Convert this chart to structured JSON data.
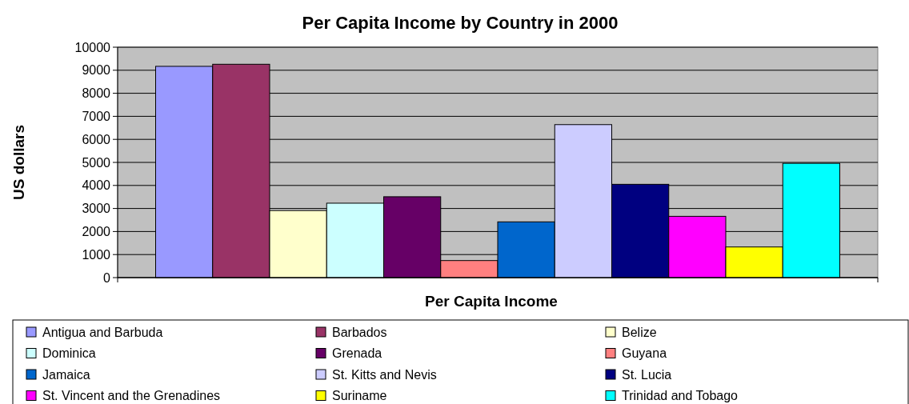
{
  "chart_data": {
    "type": "bar",
    "title": "Per Capita Income by Country in 2000",
    "xlabel": "Per Capita Income",
    "ylabel": "US dollars",
    "categories": [
      null
    ],
    "ylim": [
      0,
      10000
    ],
    "yticks": [
      0,
      1000,
      2000,
      3000,
      4000,
      5000,
      6000,
      7000,
      8000,
      9000,
      10000
    ],
    "grid": "y",
    "legend": "bottom",
    "series": [
      {
        "name": "Antigua and Barbuda",
        "color": "#9999ff",
        "values": [
          9170
        ]
      },
      {
        "name": "Barbados",
        "color": "#993366",
        "values": [
          9260
        ]
      },
      {
        "name": "Belize",
        "color": "#ffffcc",
        "values": [
          2910
        ]
      },
      {
        "name": "Dominica",
        "color": "#ccffff",
        "values": [
          3230
        ]
      },
      {
        "name": "Grenada",
        "color": "#660066",
        "values": [
          3510
        ]
      },
      {
        "name": "Guyana",
        "color": "#ff8080",
        "values": [
          740
        ]
      },
      {
        "name": "Jamaica",
        "color": "#0066cc",
        "values": [
          2420
        ]
      },
      {
        "name": "St. Kitts and Nevis",
        "color": "#ccccff",
        "values": [
          6640
        ]
      },
      {
        "name": "St. Lucia",
        "color": "#000080",
        "values": [
          4050
        ]
      },
      {
        "name": "St. Vincent and the Grenadines",
        "color": "#ff00ff",
        "values": [
          2660
        ]
      },
      {
        "name": "Suriname",
        "color": "#ffff00",
        "values": [
          1330
        ]
      },
      {
        "name": "Trinidad and Tobago",
        "color": "#00ffff",
        "values": [
          4960
        ]
      }
    ]
  }
}
